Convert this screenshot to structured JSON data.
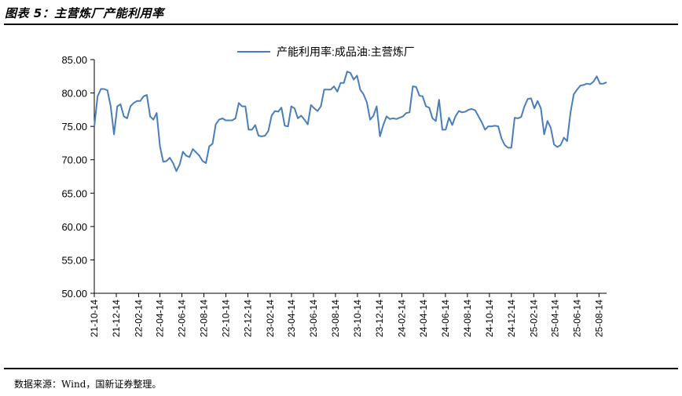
{
  "header": {
    "title": "图表 5：主营炼厂产能利用率"
  },
  "footer": {
    "source": "数据来源：Wind，国新证券整理。"
  },
  "colors": {
    "series": "#4a7ebb",
    "axis": "#000000",
    "text": "#000000"
  },
  "chart_data": {
    "type": "line",
    "title": "",
    "xlabel": "",
    "ylabel": "",
    "ylim": [
      50,
      85
    ],
    "yticks": [
      "50.00",
      "55.00",
      "60.00",
      "65.00",
      "70.00",
      "75.00",
      "80.00",
      "85.00"
    ],
    "xticks": [
      "21-10-14",
      "21-12-14",
      "22-02-14",
      "22-04-14",
      "22-06-14",
      "22-08-14",
      "22-10-14",
      "22-12-14",
      "23-02-14",
      "23-04-14",
      "23-06-14",
      "23-08-14",
      "23-10-14",
      "23-12-14",
      "24-02-14",
      "24-04-14",
      "24-06-14",
      "24-08-14",
      "24-10-14",
      "24-12-14",
      "25-02-14",
      "25-04-14",
      "25-06-14",
      "25-08-14"
    ],
    "grid": false,
    "legend_position": "top",
    "series": [
      {
        "name": "产能利用率:成品油:主营炼厂",
        "x_start": "2021-10-14",
        "x_end": "2025-09-04",
        "values": [
          75.0,
          79.5,
          80.6,
          80.6,
          80.4,
          78.0,
          73.8,
          78.0,
          78.3,
          76.5,
          76.2,
          78.0,
          78.5,
          78.8,
          78.8,
          79.5,
          79.7,
          76.5,
          76.0,
          77.0,
          72.0,
          69.7,
          69.8,
          70.3,
          69.5,
          68.3,
          69.3,
          71.2,
          70.6,
          70.4,
          71.6,
          71.1,
          70.6,
          69.8,
          69.5,
          72.0,
          72.4,
          75.3,
          76.0,
          76.2,
          75.9,
          75.9,
          75.9,
          76.2,
          78.5,
          78.0,
          78.0,
          74.5,
          74.5,
          75.2,
          73.6,
          73.5,
          73.6,
          74.3,
          76.6,
          77.3,
          77.2,
          77.8,
          75.1,
          75.0,
          78.0,
          77.7,
          76.2,
          76.6,
          76.0,
          75.3,
          78.2,
          77.7,
          77.3,
          78.0,
          80.5,
          80.5,
          80.5,
          81.0,
          80.2,
          81.5,
          81.5,
          83.2,
          83.0,
          82.0,
          82.6,
          80.5,
          79.8,
          78.6,
          76.0,
          76.6,
          78.0,
          73.5,
          75.2,
          76.5,
          76.1,
          76.2,
          76.1,
          76.3,
          76.5,
          77.0,
          77.1,
          81.0,
          80.9,
          79.6,
          79.5,
          78.0,
          77.8,
          76.2,
          75.8,
          79.0,
          74.5,
          74.5,
          76.3,
          75.2,
          76.5,
          77.3,
          77.1,
          77.2,
          77.5,
          77.6,
          77.4,
          76.5,
          75.6,
          74.5,
          75.0,
          75.0,
          75.1,
          75.0,
          73.2,
          72.2,
          71.8,
          71.8,
          76.3,
          76.2,
          76.4,
          78.0,
          79.1,
          79.2,
          77.7,
          78.8,
          77.7,
          73.8,
          75.8,
          74.8,
          72.3,
          71.9,
          72.2,
          73.3,
          72.8,
          77.0,
          79.8,
          80.5,
          81.1,
          81.2,
          81.4,
          81.3,
          81.7,
          82.5,
          81.4,
          81.4,
          81.6
        ]
      }
    ]
  }
}
